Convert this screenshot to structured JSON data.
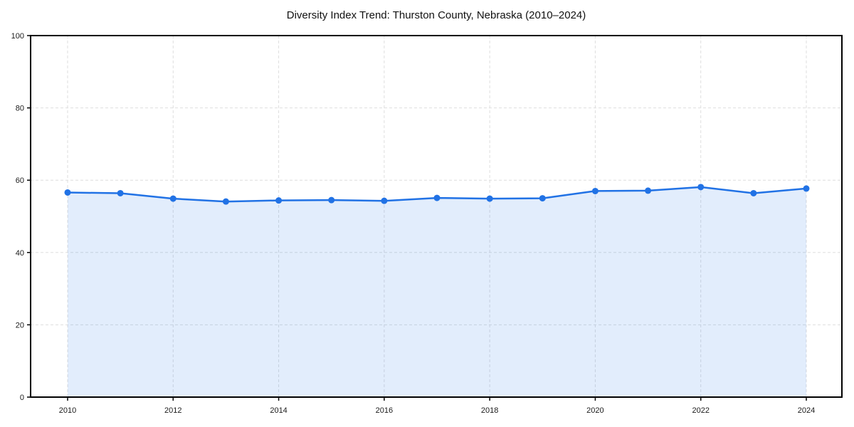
{
  "page": {
    "background": "#ffffff"
  },
  "chart_data": {
    "type": "line",
    "title": "Diversity Index Trend: Thurston County, Nebraska (2010–2024)",
    "x": [
      2010,
      2011,
      2012,
      2013,
      2014,
      2015,
      2016,
      2017,
      2018,
      2019,
      2020,
      2021,
      2022,
      2023,
      2024
    ],
    "series": [
      {
        "name": "Diversity Index",
        "values": [
          56.6,
          56.4,
          54.9,
          54.1,
          54.4,
          54.5,
          54.3,
          55.1,
          54.9,
          55.0,
          57.0,
          57.1,
          58.1,
          56.4,
          57.7
        ]
      }
    ],
    "area_fill": true,
    "markers": true,
    "xticks": [
      2010,
      2012,
      2014,
      2016,
      2018,
      2020,
      2022,
      2024
    ],
    "yticks": [
      0,
      20,
      40,
      60,
      80,
      100
    ],
    "ylim": [
      0,
      100
    ],
    "xlabel": "",
    "ylabel": "",
    "grid": true,
    "grid_style": "dashed",
    "legend_position": "none",
    "colors": {
      "line": "#2172e5",
      "marker": "#2172e5",
      "area_fill": "rgba(33, 114, 229, 0.13)",
      "grid": "#dedede",
      "axis": "#000000",
      "title_text": "#111111",
      "tick_text": "#1a1a1a"
    }
  }
}
